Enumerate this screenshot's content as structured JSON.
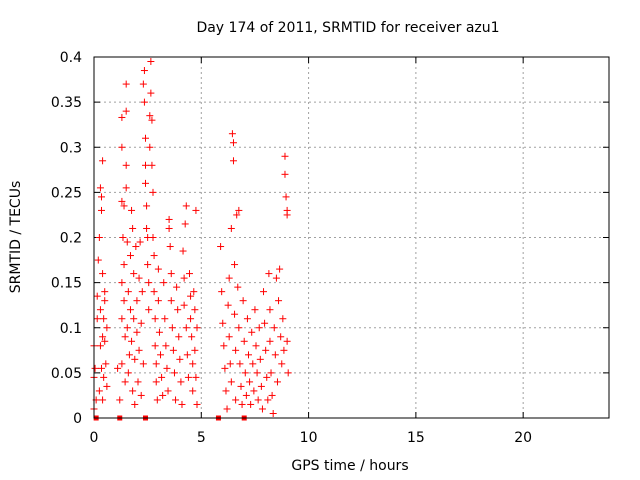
{
  "chart_data": {
    "type": "scatter",
    "title": "Day 174 of 2011, SRMTID for receiver azu1",
    "xlabel": "GPS time / hours",
    "ylabel": "SRMTID / TECUs",
    "xlim": [
      0,
      24
    ],
    "ylim": [
      0,
      0.4
    ],
    "x_ticks": [
      "0",
      "5",
      "10",
      "15",
      "20"
    ],
    "y_ticks": [
      "0",
      "0.05",
      "0.1",
      "0.15",
      "0.2",
      "0.25",
      "0.3",
      "0.35",
      "0.4"
    ],
    "grid": true,
    "marker": "+",
    "color": "#ff0000",
    "zero_markers": [
      0.1,
      1.2,
      2.4,
      5.8,
      7.0
    ],
    "series": [
      {
        "values": [
          [
            0.0,
            0.08
          ],
          [
            0.0,
            0.045
          ],
          [
            0.0,
            0.01
          ],
          [
            0.05,
            0.055
          ],
          [
            0.1,
            0.02
          ],
          [
            0.15,
            0.135
          ],
          [
            0.15,
            0.11
          ],
          [
            0.2,
            0.175
          ],
          [
            0.25,
            0.03
          ],
          [
            0.25,
            0.2
          ],
          [
            0.3,
            0.255
          ],
          [
            0.3,
            0.12
          ],
          [
            0.3,
            0.08
          ],
          [
            0.35,
            0.23
          ],
          [
            0.35,
            0.245
          ],
          [
            0.35,
            0.055
          ],
          [
            0.4,
            0.285
          ],
          [
            0.4,
            0.16
          ],
          [
            0.4,
            0.09
          ],
          [
            0.4,
            0.02
          ],
          [
            0.45,
            0.11
          ],
          [
            0.45,
            0.045
          ],
          [
            0.5,
            0.13
          ],
          [
            0.5,
            0.085
          ],
          [
            0.5,
            0.14
          ],
          [
            0.55,
            0.06
          ],
          [
            0.6,
            0.1
          ],
          [
            0.6,
            0.035
          ],
          [
            1.1,
            0.055
          ],
          [
            1.2,
            0.02
          ],
          [
            1.3,
            0.333
          ],
          [
            1.3,
            0.3
          ],
          [
            1.3,
            0.24
          ],
          [
            1.3,
            0.15
          ],
          [
            1.3,
            0.11
          ],
          [
            1.3,
            0.06
          ],
          [
            1.35,
            0.2
          ],
          [
            1.4,
            0.17
          ],
          [
            1.4,
            0.13
          ],
          [
            1.4,
            0.235
          ],
          [
            1.45,
            0.09
          ],
          [
            1.45,
            0.04
          ],
          [
            1.5,
            0.34
          ],
          [
            1.5,
            0.37
          ],
          [
            1.5,
            0.28
          ],
          [
            1.5,
            0.255
          ],
          [
            1.55,
            0.195
          ],
          [
            1.55,
            0.1
          ],
          [
            1.6,
            0.14
          ],
          [
            1.6,
            0.05
          ],
          [
            1.65,
            0.07
          ],
          [
            1.7,
            0.18
          ],
          [
            1.7,
            0.12
          ],
          [
            1.75,
            0.23
          ],
          [
            1.75,
            0.085
          ],
          [
            1.8,
            0.21
          ],
          [
            1.8,
            0.03
          ],
          [
            1.85,
            0.16
          ],
          [
            1.85,
            0.11
          ],
          [
            1.9,
            0.065
          ],
          [
            1.9,
            0.015
          ],
          [
            1.95,
            0.19
          ],
          [
            2.0,
            0.13
          ],
          [
            2.0,
            0.095
          ],
          [
            2.05,
            0.04
          ],
          [
            2.1,
            0.155
          ],
          [
            2.1,
            0.075
          ],
          [
            2.15,
            0.195
          ],
          [
            2.2,
            0.105
          ],
          [
            2.2,
            0.025
          ],
          [
            2.25,
            0.14
          ],
          [
            2.3,
            0.06
          ],
          [
            2.3,
            0.37
          ],
          [
            2.35,
            0.385
          ],
          [
            2.35,
            0.35
          ],
          [
            2.4,
            0.31
          ],
          [
            2.4,
            0.28
          ],
          [
            2.4,
            0.26
          ],
          [
            2.45,
            0.235
          ],
          [
            2.45,
            0.21
          ],
          [
            2.5,
            0.2
          ],
          [
            2.5,
            0.17
          ],
          [
            2.55,
            0.15
          ],
          [
            2.55,
            0.12
          ],
          [
            2.6,
            0.3
          ],
          [
            2.6,
            0.335
          ],
          [
            2.65,
            0.36
          ],
          [
            2.65,
            0.395
          ],
          [
            2.7,
            0.33
          ],
          [
            2.7,
            0.28
          ],
          [
            2.75,
            0.25
          ],
          [
            2.75,
            0.2
          ],
          [
            2.8,
            0.18
          ],
          [
            2.8,
            0.14
          ],
          [
            2.85,
            0.11
          ],
          [
            2.85,
            0.08
          ],
          [
            2.9,
            0.06
          ],
          [
            2.9,
            0.04
          ],
          [
            2.95,
            0.02
          ],
          [
            3.0,
            0.165
          ],
          [
            3.0,
            0.13
          ],
          [
            3.05,
            0.095
          ],
          [
            3.1,
            0.07
          ],
          [
            3.15,
            0.045
          ],
          [
            3.2,
            0.025
          ],
          [
            3.25,
            0.15
          ],
          [
            3.3,
            0.11
          ],
          [
            3.35,
            0.08
          ],
          [
            3.4,
            0.055
          ],
          [
            3.45,
            0.03
          ],
          [
            3.5,
            0.21
          ],
          [
            3.5,
            0.22
          ],
          [
            3.55,
            0.19
          ],
          [
            3.6,
            0.16
          ],
          [
            3.6,
            0.13
          ],
          [
            3.65,
            0.1
          ],
          [
            3.7,
            0.075
          ],
          [
            3.75,
            0.05
          ],
          [
            3.8,
            0.02
          ],
          [
            3.85,
            0.145
          ],
          [
            3.9,
            0.12
          ],
          [
            3.95,
            0.09
          ],
          [
            4.0,
            0.065
          ],
          [
            4.05,
            0.04
          ],
          [
            4.1,
            0.015
          ],
          [
            4.15,
            0.185
          ],
          [
            4.2,
            0.155
          ],
          [
            4.2,
            0.125
          ],
          [
            4.25,
            0.215
          ],
          [
            4.3,
            0.235
          ],
          [
            4.3,
            0.1
          ],
          [
            4.35,
            0.07
          ],
          [
            4.4,
            0.045
          ],
          [
            4.45,
            0.16
          ],
          [
            4.5,
            0.135
          ],
          [
            4.5,
            0.11
          ],
          [
            4.55,
            0.09
          ],
          [
            4.6,
            0.06
          ],
          [
            4.6,
            0.03
          ],
          [
            4.65,
            0.14
          ],
          [
            4.7,
            0.12
          ],
          [
            4.7,
            0.075
          ],
          [
            4.75,
            0.23
          ],
          [
            4.75,
            0.045
          ],
          [
            4.8,
            0.1
          ],
          [
            4.8,
            0.015
          ],
          [
            5.9,
            0.19
          ],
          [
            5.95,
            0.14
          ],
          [
            6.0,
            0.105
          ],
          [
            6.05,
            0.08
          ],
          [
            6.1,
            0.055
          ],
          [
            6.15,
            0.03
          ],
          [
            6.2,
            0.01
          ],
          [
            6.25,
            0.125
          ],
          [
            6.3,
            0.155
          ],
          [
            6.3,
            0.09
          ],
          [
            6.35,
            0.06
          ],
          [
            6.4,
            0.21
          ],
          [
            6.4,
            0.04
          ],
          [
            6.45,
            0.315
          ],
          [
            6.5,
            0.305
          ],
          [
            6.5,
            0.285
          ],
          [
            6.55,
            0.17
          ],
          [
            6.55,
            0.115
          ],
          [
            6.6,
            0.075
          ],
          [
            6.6,
            0.02
          ],
          [
            6.65,
            0.225
          ],
          [
            6.7,
            0.145
          ],
          [
            6.75,
            0.23
          ],
          [
            6.75,
            0.1
          ],
          [
            6.8,
            0.06
          ],
          [
            6.85,
            0.035
          ],
          [
            6.9,
            0.015
          ],
          [
            6.95,
            0.13
          ],
          [
            7.0,
            0.085
          ],
          [
            7.05,
            0.05
          ],
          [
            7.1,
            0.025
          ],
          [
            7.15,
            0.11
          ],
          [
            7.2,
            0.07
          ],
          [
            7.25,
            0.04
          ],
          [
            7.3,
            0.015
          ],
          [
            7.35,
            0.095
          ],
          [
            7.4,
            0.06
          ],
          [
            7.45,
            0.03
          ],
          [
            7.5,
            0.12
          ],
          [
            7.55,
            0.08
          ],
          [
            7.6,
            0.05
          ],
          [
            7.65,
            0.02
          ],
          [
            7.7,
            0.1
          ],
          [
            7.75,
            0.065
          ],
          [
            7.8,
            0.035
          ],
          [
            7.85,
            0.01
          ],
          [
            7.9,
            0.14
          ],
          [
            7.95,
            0.105
          ],
          [
            8.0,
            0.075
          ],
          [
            8.05,
            0.045
          ],
          [
            8.1,
            0.02
          ],
          [
            8.15,
            0.16
          ],
          [
            8.2,
            0.12
          ],
          [
            8.2,
            0.085
          ],
          [
            8.25,
            0.05
          ],
          [
            8.3,
            0.025
          ],
          [
            8.35,
            0.005
          ],
          [
            8.4,
            0.1
          ],
          [
            8.45,
            0.07
          ],
          [
            8.5,
            0.155
          ],
          [
            8.55,
            0.04
          ],
          [
            8.6,
            0.13
          ],
          [
            8.65,
            0.165
          ],
          [
            8.7,
            0.09
          ],
          [
            8.75,
            0.06
          ],
          [
            8.8,
            0.11
          ],
          [
            8.85,
            0.075
          ],
          [
            8.9,
            0.29
          ],
          [
            8.9,
            0.27
          ],
          [
            8.95,
            0.245
          ],
          [
            9.0,
            0.23
          ],
          [
            9.0,
            0.085
          ],
          [
            9.0,
            0.225
          ],
          [
            9.05,
            0.05
          ]
        ]
      }
    ]
  }
}
